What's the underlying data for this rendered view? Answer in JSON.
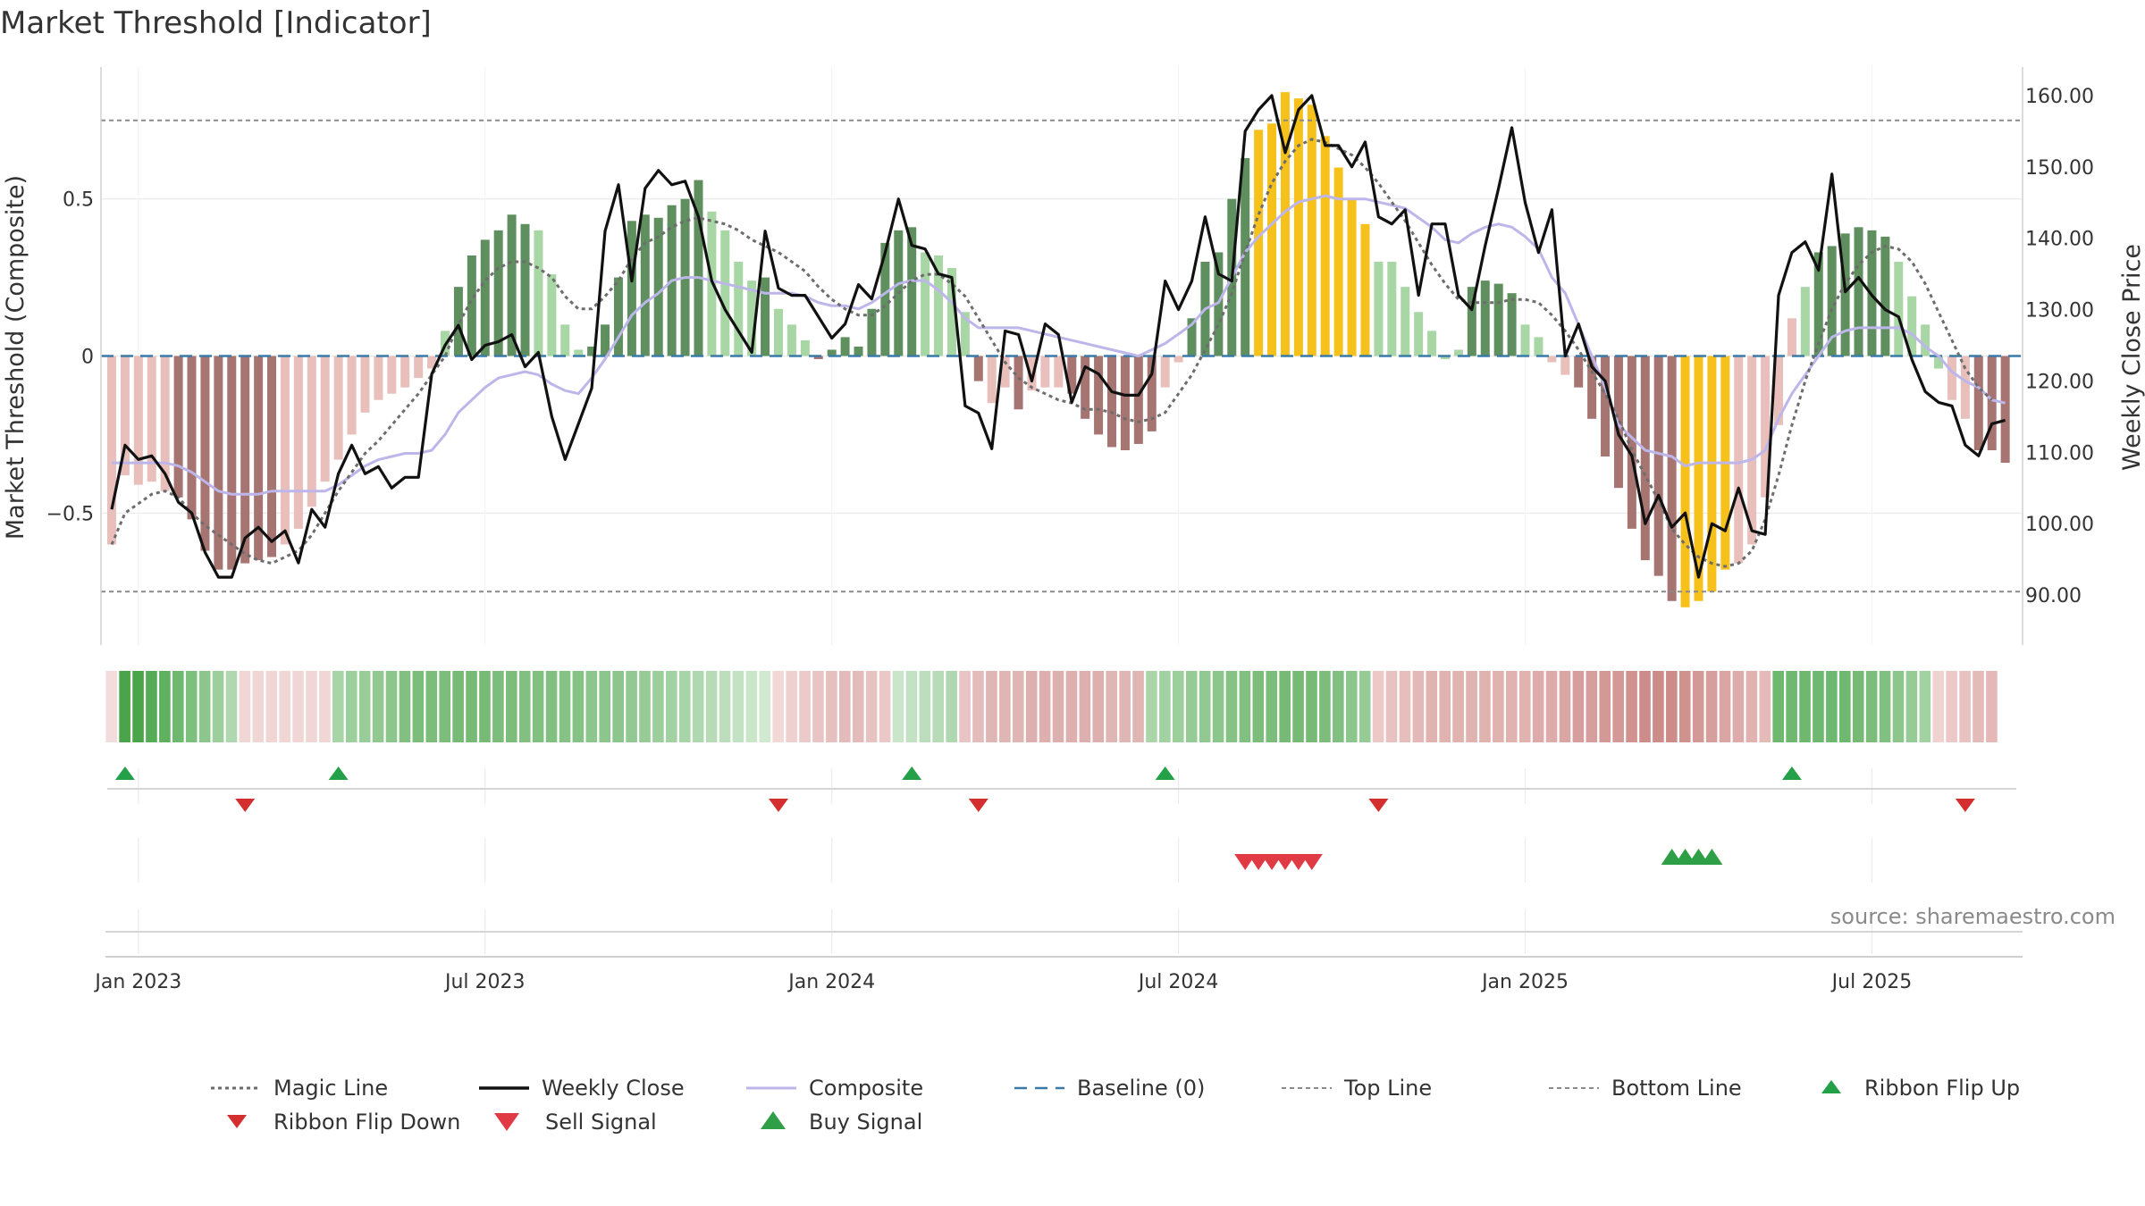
{
  "chart_data": {
    "type": "bar",
    "title": "Market Threshold [Indicator]",
    "ylabel": "Market Threshold (Composite)",
    "y2label": "Weekly Close Price",
    "source": "source: sharemaestro.com",
    "ylim": [
      -0.92,
      0.92
    ],
    "y2lim": [
      83,
      164
    ],
    "y_ticks": [
      {
        "v": 0.5,
        "label": "0.5"
      },
      {
        "v": 0,
        "label": "0"
      },
      {
        "v": -0.5,
        "label": "−0.5"
      }
    ],
    "y2_ticks": [
      {
        "v": 160,
        "label": "160.00"
      },
      {
        "v": 150,
        "label": "150.00"
      },
      {
        "v": 140,
        "label": "140.00"
      },
      {
        "v": 130,
        "label": "130.00"
      },
      {
        "v": 120,
        "label": "120.00"
      },
      {
        "v": 110,
        "label": "110.00"
      },
      {
        "v": 100,
        "label": "100.00"
      },
      {
        "v": 90,
        "label": "90.00"
      }
    ],
    "x_ticks": [
      {
        "week": 2,
        "label": "Jan 2023"
      },
      {
        "week": 28,
        "label": "Jul 2023"
      },
      {
        "week": 54,
        "label": "Jan 2024"
      },
      {
        "week": 80,
        "label": "Jul 2024"
      },
      {
        "week": 106,
        "label": "Jan 2025"
      },
      {
        "week": 132,
        "label": "Jul 2025"
      }
    ],
    "weeks": 143,
    "top_line": 0.75,
    "bottom_line": -0.75,
    "baseline": 0,
    "colors": {
      "strong_up": "#5f8f5f",
      "weak_up": "#a9d6a5",
      "strong_down": "#a67572",
      "weak_down": "#e8bfbb",
      "extreme": "#f7c11b",
      "weekly_close": "#111111",
      "composite": "#bdb6ea",
      "magic_line": "#6d6d6d",
      "baseline": "#3a7aa8",
      "bounds": "#8a8a8a",
      "signal_up": "#24a148",
      "signal_down": "#d32f2f",
      "sell_signal": "#e03a45",
      "buy_signal": "#2e9e47"
    },
    "bars": [
      -0.6,
      -0.38,
      -0.41,
      -0.4,
      -0.43,
      -0.45,
      -0.52,
      -0.62,
      -0.68,
      -0.68,
      -0.66,
      -0.65,
      -0.64,
      -0.6,
      -0.55,
      -0.48,
      -0.4,
      -0.33,
      -0.25,
      -0.18,
      -0.14,
      -0.12,
      -0.1,
      -0.07,
      -0.04,
      0.08,
      0.22,
      0.32,
      0.37,
      0.4,
      0.45,
      0.42,
      0.4,
      0.26,
      0.1,
      0.02,
      0.03,
      0.1,
      0.25,
      0.43,
      0.45,
      0.44,
      0.48,
      0.5,
      0.56,
      0.46,
      0.4,
      0.3,
      0.24,
      0.25,
      0.15,
      0.1,
      0.05,
      -0.01,
      0.02,
      0.06,
      0.03,
      0.15,
      0.36,
      0.4,
      0.41,
      0.33,
      0.32,
      0.28,
      0.14,
      -0.08,
      -0.15,
      -0.1,
      -0.17,
      -0.11,
      -0.1,
      -0.1,
      -0.12,
      -0.2,
      -0.25,
      -0.29,
      -0.3,
      -0.28,
      -0.24,
      -0.1,
      -0.02,
      0.12,
      0.3,
      0.33,
      0.5,
      0.63,
      0.72,
      0.74,
      0.84,
      0.82,
      0.8,
      0.7,
      0.6,
      0.5,
      0.42,
      0.3,
      0.3,
      0.22,
      0.14,
      0.08,
      -0.01,
      0.02,
      0.22,
      0.24,
      0.23,
      0.2,
      0.1,
      0.06,
      -0.02,
      -0.06,
      -0.1,
      -0.2,
      -0.32,
      -0.42,
      -0.55,
      -0.65,
      -0.7,
      -0.78,
      -0.8,
      -0.78,
      -0.75,
      -0.68,
      -0.66,
      -0.6,
      -0.45,
      -0.22,
      0.12,
      0.22,
      0.33,
      0.35,
      0.39,
      0.41,
      0.4,
      0.38,
      0.3,
      0.19,
      0.1,
      -0.04,
      -0.14,
      -0.2,
      -0.3,
      -0.3,
      -0.34
    ],
    "bar_class": [
      "wd",
      "wd",
      "wd",
      "wd",
      "wd",
      "sd",
      "sd",
      "sd",
      "sd",
      "sd",
      "sd",
      "sd",
      "sd",
      "wd",
      "wd",
      "wd",
      "wd",
      "wd",
      "wd",
      "wd",
      "wd",
      "wd",
      "wd",
      "wd",
      "wd",
      "wu",
      "su",
      "su",
      "su",
      "su",
      "su",
      "su",
      "wu",
      "wu",
      "wu",
      "wu",
      "su",
      "su",
      "su",
      "su",
      "su",
      "su",
      "su",
      "su",
      "su",
      "wu",
      "wu",
      "wu",
      "wu",
      "su",
      "wu",
      "wu",
      "wu",
      "sd",
      "su",
      "su",
      "su",
      "su",
      "su",
      "su",
      "su",
      "wu",
      "wu",
      "wu",
      "wu",
      "sd",
      "wd",
      "wd",
      "sd",
      "wd",
      "wd",
      "wd",
      "sd",
      "sd",
      "sd",
      "sd",
      "sd",
      "sd",
      "sd",
      "wd",
      "wd",
      "su",
      "su",
      "su",
      "su",
      "su",
      "ex",
      "ex",
      "ex",
      "ex",
      "ex",
      "ex",
      "ex",
      "ex",
      "ex",
      "wu",
      "wu",
      "wu",
      "wu",
      "wu",
      "wu",
      "wu",
      "su",
      "su",
      "su",
      "su",
      "wu",
      "wu",
      "wd",
      "wd",
      "sd",
      "sd",
      "sd",
      "sd",
      "sd",
      "sd",
      "sd",
      "sd",
      "ex",
      "ex",
      "ex",
      "ex",
      "wd",
      "wd",
      "wd",
      "wd",
      "wd",
      "wu",
      "su",
      "su",
      "su",
      "su",
      "su",
      "su",
      "wu",
      "wu",
      "wu",
      "wu",
      "wd",
      "wd",
      "sd",
      "sd",
      "sd",
      "sd"
    ],
    "weekly_close": [
      102,
      111,
      109,
      109.5,
      107,
      103,
      101.5,
      96,
      92.5,
      92.5,
      98,
      99.5,
      97.5,
      99,
      94.5,
      102,
      99.5,
      107,
      111,
      107,
      108,
      105,
      106.5,
      106.5,
      121,
      125,
      127.8,
      123,
      125,
      125.5,
      126.5,
      122,
      124,
      115,
      109,
      114,
      119,
      141,
      147.5,
      134,
      147,
      149.5,
      147.5,
      148,
      143,
      134,
      130,
      127,
      124,
      141,
      133,
      132,
      132,
      129,
      126,
      128,
      133.5,
      131.5,
      138,
      145.5,
      139,
      138.5,
      135,
      134.5,
      116.5,
      115.5,
      110.5,
      127,
      126.5,
      120,
      128,
      126.5,
      117,
      122,
      121,
      118.5,
      118,
      118,
      121,
      134,
      130,
      134,
      143,
      135,
      134,
      155,
      158,
      160,
      152,
      158,
      160,
      153,
      153,
      150,
      153.5,
      143,
      142,
      144,
      132,
      142,
      142,
      132,
      130,
      139,
      147,
      155.5,
      145,
      138,
      144,
      123.5,
      128,
      122,
      120,
      112.5,
      109.5,
      100,
      104,
      99.5,
      101.5,
      92.5,
      100,
      99,
      105,
      99,
      98.5,
      132,
      138,
      139.5,
      135.5,
      149,
      132.5,
      134.5,
      132,
      130,
      129,
      123,
      118.5,
      117,
      116.5,
      111,
      109.5,
      114,
      114.5
    ],
    "composite": [
      -0.34,
      -0.34,
      -0.34,
      -0.34,
      -0.34,
      -0.35,
      -0.37,
      -0.4,
      -0.43,
      -0.44,
      -0.44,
      -0.44,
      -0.43,
      -0.43,
      -0.43,
      -0.43,
      -0.43,
      -0.41,
      -0.38,
      -0.35,
      -0.33,
      -0.32,
      -0.31,
      -0.31,
      -0.3,
      -0.25,
      -0.18,
      -0.14,
      -0.1,
      -0.07,
      -0.06,
      -0.05,
      -0.06,
      -0.09,
      -0.11,
      -0.12,
      -0.07,
      -0.01,
      0.06,
      0.13,
      0.17,
      0.2,
      0.24,
      0.25,
      0.25,
      0.24,
      0.23,
      0.22,
      0.21,
      0.2,
      0.2,
      0.2,
      0.19,
      0.17,
      0.16,
      0.16,
      0.15,
      0.17,
      0.2,
      0.23,
      0.24,
      0.24,
      0.21,
      0.17,
      0.12,
      0.09,
      0.09,
      0.09,
      0.09,
      0.08,
      0.07,
      0.06,
      0.05,
      0.04,
      0.03,
      0.02,
      0.01,
      0,
      0.02,
      0.04,
      0.07,
      0.1,
      0.15,
      0.17,
      0.25,
      0.33,
      0.38,
      0.42,
      0.46,
      0.49,
      0.5,
      0.51,
      0.5,
      0.5,
      0.5,
      0.49,
      0.48,
      0.47,
      0.44,
      0.41,
      0.37,
      0.36,
      0.39,
      0.41,
      0.42,
      0.41,
      0.38,
      0.34,
      0.25,
      0.2,
      0.1,
      0.0,
      -0.1,
      -0.22,
      -0.26,
      -0.3,
      -0.31,
      -0.32,
      -0.35,
      -0.34,
      -0.34,
      -0.34,
      -0.34,
      -0.33,
      -0.3,
      -0.2,
      -0.12,
      -0.06,
      0,
      0.06,
      0.08,
      0.09,
      0.09,
      0.09,
      0.09,
      0.07,
      0.03,
      0.0,
      -0.05,
      -0.08,
      -0.1,
      -0.14,
      -0.15
    ],
    "magic_line": [
      -0.6,
      -0.5,
      -0.47,
      -0.44,
      -0.43,
      -0.45,
      -0.5,
      -0.54,
      -0.57,
      -0.6,
      -0.63,
      -0.65,
      -0.66,
      -0.64,
      -0.62,
      -0.57,
      -0.5,
      -0.43,
      -0.37,
      -0.31,
      -0.27,
      -0.22,
      -0.17,
      -0.12,
      -0.06,
      0.0,
      0.1,
      0.18,
      0.24,
      0.28,
      0.3,
      0.3,
      0.28,
      0.25,
      0.19,
      0.15,
      0.15,
      0.19,
      0.24,
      0.31,
      0.36,
      0.38,
      0.41,
      0.43,
      0.44,
      0.43,
      0.42,
      0.4,
      0.37,
      0.35,
      0.33,
      0.3,
      0.27,
      0.22,
      0.18,
      0.15,
      0.13,
      0.13,
      0.16,
      0.2,
      0.24,
      0.26,
      0.26,
      0.23,
      0.19,
      0.12,
      0.05,
      -0.02,
      -0.07,
      -0.1,
      -0.12,
      -0.14,
      -0.15,
      -0.17,
      -0.17,
      -0.18,
      -0.2,
      -0.21,
      -0.2,
      -0.18,
      -0.12,
      -0.06,
      0.02,
      0.1,
      0.2,
      0.33,
      0.45,
      0.55,
      0.62,
      0.67,
      0.69,
      0.68,
      0.66,
      0.64,
      0.6,
      0.55,
      0.49,
      0.43,
      0.36,
      0.29,
      0.23,
      0.18,
      0.17,
      0.17,
      0.17,
      0.18,
      0.18,
      0.17,
      0.13,
      0.08,
      0.02,
      -0.05,
      -0.12,
      -0.2,
      -0.3,
      -0.38,
      -0.46,
      -0.55,
      -0.6,
      -0.64,
      -0.66,
      -0.67,
      -0.66,
      -0.62,
      -0.52,
      -0.38,
      -0.22,
      -0.08,
      0.04,
      0.15,
      0.23,
      0.29,
      0.33,
      0.35,
      0.34,
      0.3,
      0.23,
      0.14,
      0.05,
      -0.04,
      -0.1,
      -0.14
    ],
    "ribbon": [
      "#f3dcdc",
      "#4aa54a",
      "#4aa54a",
      "#56ab56",
      "#5fb05f",
      "#6fb86f",
      "#7dc07d",
      "#8cc68c",
      "#9ccf9c",
      "#b0d8b0",
      "#f1d6d6",
      "#f1d6d6",
      "#f1d6d6",
      "#f1d6d6",
      "#f1d6d6",
      "#f1d6d6",
      "#f1d6d6",
      "#a8d5a8",
      "#9ccf9c",
      "#98cc98",
      "#92c992",
      "#8cc68c",
      "#82c082",
      "#7cbd7c",
      "#7cbd7c",
      "#7cbd7c",
      "#76ba76",
      "#76ba76",
      "#76ba76",
      "#7cbd7c",
      "#7cbd7c",
      "#82c082",
      "#82c082",
      "#82c082",
      "#86c286",
      "#86c286",
      "#8cc68c",
      "#8cc68c",
      "#8cc68c",
      "#92c992",
      "#96cb96",
      "#9ccf9c",
      "#a2d2a2",
      "#a8d5a8",
      "#b0d8b0",
      "#b6dbb6",
      "#bcdebc",
      "#c3e2c3",
      "#c9e6c9",
      "#d0e9d0",
      "#f3d8d8",
      "#eed0cf",
      "#ebcac9",
      "#e8c5c4",
      "#e5c0bf",
      "#e3bbba",
      "#e3bbba",
      "#e6c2c1",
      "#e9c8c7",
      "#c9e6c9",
      "#c3e2c3",
      "#bcdebc",
      "#b6dbb6",
      "#b0d8b0",
      "#e8c5c4",
      "#e3bbba",
      "#e0b6b5",
      "#e0b6b5",
      "#e0b6b5",
      "#ddb0af",
      "#ddb0af",
      "#ddb0af",
      "#ddb0af",
      "#ddb0af",
      "#ddb0af",
      "#e0b6b5",
      "#e0b6b5",
      "#e0b6b5",
      "#aad6aa",
      "#a2d2a2",
      "#9ccf9c",
      "#96cb96",
      "#92c992",
      "#8cc68c",
      "#86c286",
      "#82c082",
      "#7cbd7c",
      "#7cbd7c",
      "#76ba76",
      "#76ba76",
      "#76ba76",
      "#7cbd7c",
      "#82c082",
      "#8cc68c",
      "#96cb96",
      "#ecc9c7",
      "#e8c2c0",
      "#e6bebc",
      "#e3b8b6",
      "#e0b2b0",
      "#e0b2b0",
      "#e0b2b0",
      "#e0b2b0",
      "#e0b2b0",
      "#e0b2b0",
      "#e0b2b0",
      "#e0b2b0",
      "#ddacaa",
      "#ddacaa",
      "#daa6a4",
      "#d69f9d",
      "#d69f9d",
      "#d39996",
      "#d39996",
      "#d0928f",
      "#cd8c89",
      "#cd8c89",
      "#cd8c89",
      "#d0928f",
      "#d39996",
      "#d69f9d",
      "#daa6a4",
      "#ddacaa",
      "#e0b2b0",
      "#e5bbb9",
      "#6fb86f",
      "#6fb86f",
      "#6fb86f",
      "#6fb86f",
      "#6fb86f",
      "#6fb86f",
      "#76ba76",
      "#7cbd7c",
      "#82c082",
      "#8cc68c",
      "#96cb96",
      "#a2d2a2",
      "#f0d2d0",
      "#ecc9c7",
      "#e8c2c0",
      "#e5bbb9",
      "#e3b8b6"
    ],
    "ribbon_flip_up": [
      1,
      17,
      60,
      79,
      126
    ],
    "ribbon_flip_down": [
      10,
      50,
      65,
      95,
      139
    ],
    "sell_signals": [
      85,
      86,
      87,
      88,
      89,
      90
    ],
    "buy_signals": [
      117,
      118,
      119,
      120
    ],
    "legend": [
      {
        "key": "magic",
        "label": "Magic Line"
      },
      {
        "key": "close",
        "label": "Weekly Close"
      },
      {
        "key": "composite",
        "label": "Composite"
      },
      {
        "key": "baseline",
        "label": "Baseline (0)"
      },
      {
        "key": "top",
        "label": "Top Line"
      },
      {
        "key": "bottom",
        "label": "Bottom Line"
      },
      {
        "key": "flipup",
        "label": "Ribbon Flip Up"
      },
      {
        "key": "flipdown",
        "label": "Ribbon Flip Down"
      },
      {
        "key": "sell",
        "label": "Sell Signal"
      },
      {
        "key": "buy",
        "label": "Buy Signal"
      }
    ]
  }
}
